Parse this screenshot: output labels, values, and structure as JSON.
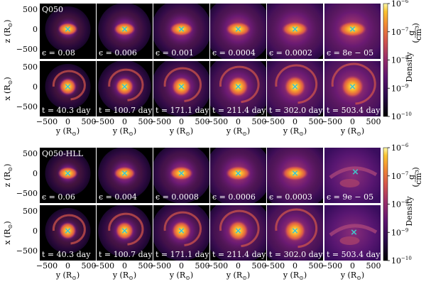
{
  "figure": {
    "blocks": [
      {
        "label": "Q050",
        "epsilons": [
          "ϵ = 0.08",
          "ϵ = 0.006",
          "ϵ = 0.001",
          "ϵ = 0.0004",
          "ϵ = 0.0002",
          "ϵ = 8e − 05"
        ],
        "times": [
          "t = 40.3 day",
          "t = 100.7 day",
          "t = 171.1 day",
          "t = 211.4 day",
          "t = 302.0 day",
          "t = 503.4 day"
        ]
      },
      {
        "label": "Q050-HLL",
        "epsilons": [
          "ϵ = 0.06",
          "ϵ = 0.004",
          "ϵ = 0.0008",
          "ϵ = 0.0006",
          "ϵ = 0.0003",
          "ϵ = 9e − 05"
        ],
        "times": [
          "t = 40.3 day",
          "t = 100.7 day",
          "t = 171.1 day",
          "t = 211.4 day",
          "t = 302.0 day",
          "t = 503.4 day"
        ]
      }
    ],
    "y_ticks": [
      "−500",
      "0",
      "500"
    ],
    "axis_top_label": "z  (R",
    "axis_bottom_label": "x  (R",
    "axis_x_label": "y  (R",
    "solar_symbol": "⊙",
    "colorbar": {
      "label": "Density",
      "unit_num": "g",
      "unit_den": "cm³",
      "ticks": [
        "10",
        "10",
        "10",
        "10",
        "10"
      ],
      "exponents": [
        "−6",
        "−7",
        "−8",
        "−9",
        "−10"
      ]
    },
    "colormap": [
      "#000000",
      "#2a0a4a",
      "#5d1470",
      "#9a2f6a",
      "#d6574b",
      "#f28c33",
      "#fbc431",
      "#fff9a8"
    ],
    "marker_color": "#44c2c8"
  }
}
